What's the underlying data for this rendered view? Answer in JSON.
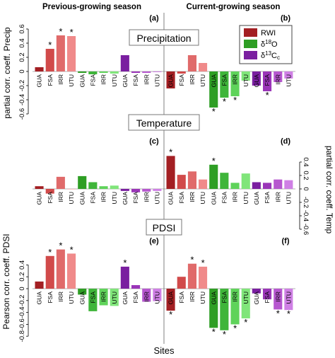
{
  "header": {
    "left": "Previous-growing season",
    "right": "Current-growing season"
  },
  "x_label": "Sites",
  "legend": [
    {
      "label": "RWI",
      "color": "#a31f23"
    },
    {
      "label": "δ18O",
      "color": "#2e9e24"
    },
    {
      "label": "δ13Cc",
      "color": "#7a1fa0"
    }
  ],
  "rows": [
    {
      "title": "Precipitation",
      "ylabel_left": "partial corr. coeff. Precip",
      "ylabel_right": ""
    },
    {
      "title": "Temperature",
      "ylabel_left": "",
      "ylabel_right": "partial corr. coeff. Temp"
    },
    {
      "title": "PDSI",
      "ylabel_left": "Pearson corr. coeff. PDSI",
      "ylabel_right": ""
    }
  ],
  "chart_data": [
    {
      "type": "bar",
      "panel": "(a)",
      "row": "Precipitation",
      "season": "Previous-growing season",
      "categories": [
        "GUA",
        "FSA",
        "IRR",
        "UTU",
        "GUA",
        "FSA",
        "IRR",
        "UTU",
        "GUA",
        "FSA",
        "IRR",
        "UTU"
      ],
      "values": [
        0.06,
        0.32,
        0.51,
        0.5,
        -0.02,
        -0.04,
        -0.02,
        -0.03,
        0.23,
        -0.02,
        -0.02,
        -0.01
      ],
      "colors": [
        "#a31f23",
        "#d14a4a",
        "#e06a6a",
        "#f08a8a",
        "#2e9e24",
        "#3fb53a",
        "#5fd35a",
        "#80e57a",
        "#7a1fa0",
        "#9a35b8",
        "#b657cf",
        "#cf80e5"
      ],
      "significant": [
        "FSA",
        "IRR",
        "UTU"
      ],
      "significant_index": [
        1,
        2,
        3
      ],
      "ylim": [
        -0.6,
        0.6
      ],
      "yticks": [
        0.6,
        0.4,
        0.2,
        0,
        -0.2,
        -0.4,
        -0.6
      ]
    },
    {
      "type": "bar",
      "panel": "(b)",
      "row": "Precipitation",
      "season": "Current-growing season",
      "categories": [
        "GUA",
        "FSA",
        "IRR",
        "UTU",
        "GUA",
        "FSA",
        "IRR",
        "UTU",
        "GUA",
        "FSA",
        "IRR",
        "UTU"
      ],
      "values": [
        -0.24,
        -0.03,
        0.23,
        0.12,
        -0.51,
        -0.37,
        -0.35,
        -0.13,
        -0.2,
        -0.28,
        -0.15,
        -0.1
      ],
      "colors": [
        "#a31f23",
        "#d14a4a",
        "#e06a6a",
        "#f08a8a",
        "#2e9e24",
        "#3fb53a",
        "#5fd35a",
        "#80e57a",
        "#7a1fa0",
        "#9a35b8",
        "#b657cf",
        "#cf80e5"
      ],
      "significant": [
        "GUA",
        "FSA",
        "IRR",
        "FSA"
      ],
      "significant_index": [
        4,
        5,
        6,
        9
      ],
      "ylim": [
        -0.6,
        0.6
      ]
    },
    {
      "type": "bar",
      "panel": "(c)",
      "row": "Temperature",
      "season": "Previous-growing season",
      "categories": [
        "GUA",
        "FSA",
        "IRR",
        "UTU",
        "GUA",
        "FSA",
        "IRR",
        "UTU",
        "GUA",
        "FSA",
        "IRR",
        "UTU"
      ],
      "values": [
        0.04,
        -0.07,
        0.18,
        0.0,
        0.19,
        0.1,
        0.04,
        0.05,
        -0.03,
        -0.05,
        -0.04,
        -0.03
      ],
      "colors": [
        "#a31f23",
        "#d14a4a",
        "#e06a6a",
        "#f08a8a",
        "#2e9e24",
        "#3fb53a",
        "#5fd35a",
        "#80e57a",
        "#7a1fa0",
        "#9a35b8",
        "#b657cf",
        "#cf80e5"
      ],
      "significant": [],
      "significant_index": [],
      "ylim": [
        -0.6,
        0.6
      ]
    },
    {
      "type": "bar",
      "panel": "(d)",
      "row": "Temperature",
      "season": "Current-growing season",
      "categories": [
        "GUA",
        "FSA",
        "IRR",
        "UTU",
        "GUA",
        "FSA",
        "IRR",
        "UTU",
        "GUA",
        "FSA",
        "IRR",
        "UTU"
      ],
      "values": [
        0.49,
        0.21,
        0.26,
        0.14,
        0.36,
        0.24,
        0.09,
        0.23,
        0.1,
        0.09,
        0.14,
        0.13
      ],
      "colors": [
        "#a31f23",
        "#d14a4a",
        "#e06a6a",
        "#f08a8a",
        "#2e9e24",
        "#3fb53a",
        "#5fd35a",
        "#80e57a",
        "#7a1fa0",
        "#9a35b8",
        "#b657cf",
        "#cf80e5"
      ],
      "significant": [
        "GUA",
        "GUA"
      ],
      "significant_index": [
        0,
        4
      ],
      "ylim": [
        -0.6,
        0.6
      ],
      "yticks": [
        0.4,
        0.2,
        0,
        -0.2,
        -0.4,
        -0.6
      ]
    },
    {
      "type": "bar",
      "panel": "(e)",
      "row": "PDSI",
      "season": "Previous-growing season",
      "categories": [
        "GUA",
        "FSA",
        "IRR",
        "UTU",
        "GUA",
        "FSA",
        "IRR",
        "UTU",
        "GUA",
        "FSA",
        "IRR",
        "UTU"
      ],
      "values": [
        0.12,
        0.55,
        0.66,
        0.59,
        -0.1,
        -0.38,
        -0.28,
        -0.29,
        0.37,
        0.06,
        -0.22,
        -0.21
      ],
      "colors": [
        "#a31f23",
        "#d14a4a",
        "#e06a6a",
        "#f08a8a",
        "#2e9e24",
        "#3fb53a",
        "#5fd35a",
        "#80e57a",
        "#7a1fa0",
        "#9a35b8",
        "#b657cf",
        "#cf80e5"
      ],
      "significant": [
        "FSA",
        "IRR",
        "UTU",
        "GUA"
      ],
      "significant_index": [
        1,
        2,
        3,
        8
      ],
      "ylim": [
        -0.8,
        0.8
      ],
      "yticks": [
        0.4,
        0.2,
        0,
        -0.2,
        -0.4,
        -0.6,
        -0.8
      ]
    },
    {
      "type": "bar",
      "panel": "(f)",
      "row": "PDSI",
      "season": "Current-growing season",
      "categories": [
        "GUA",
        "FSA",
        "IRR",
        "UTU",
        "GUA",
        "FSA",
        "IRR",
        "UTU",
        "GUA",
        "FSA",
        "IRR",
        "UTU"
      ],
      "values": [
        -0.37,
        0.2,
        0.42,
        0.37,
        -0.66,
        -0.7,
        -0.6,
        -0.5,
        -0.08,
        -0.18,
        -0.35,
        -0.36
      ],
      "colors": [
        "#a31f23",
        "#d14a4a",
        "#e06a6a",
        "#f08a8a",
        "#2e9e24",
        "#3fb53a",
        "#5fd35a",
        "#80e57a",
        "#7a1fa0",
        "#9a35b8",
        "#b657cf",
        "#cf80e5"
      ],
      "significant": [
        "GUA",
        "IRR",
        "UTU",
        "GUA",
        "FSA",
        "IRR",
        "UTU",
        "IRR",
        "UTU"
      ],
      "significant_index": [
        0,
        2,
        3,
        4,
        5,
        6,
        7,
        10,
        11
      ],
      "ylim": [
        -0.8,
        0.8
      ]
    }
  ]
}
